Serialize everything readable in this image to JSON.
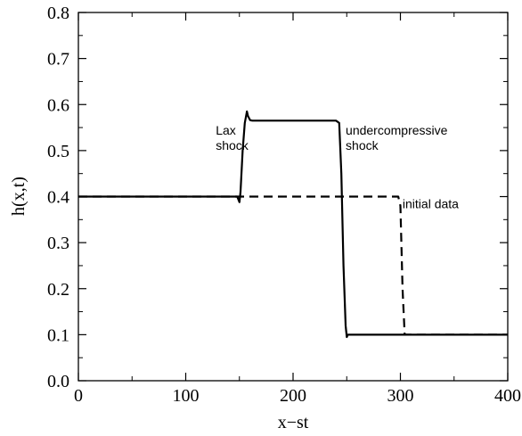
{
  "chart_data": {
    "type": "line",
    "title": "",
    "xlabel": "x−st",
    "ylabel": "h(x,t)",
    "xlim": [
      0,
      400
    ],
    "ylim": [
      0,
      0.8
    ],
    "x_ticks": [
      0,
      100,
      200,
      300,
      400
    ],
    "y_ticks": [
      0.0,
      0.1,
      0.2,
      0.3,
      0.4,
      0.5,
      0.6,
      0.7,
      0.8
    ],
    "x_tick_labels": [
      "0",
      "100",
      "200",
      "300",
      "400"
    ],
    "y_tick_labels": [
      "0.0",
      "0.1",
      "0.2",
      "0.3",
      "0.4",
      "0.5",
      "0.6",
      "0.7",
      "0.8"
    ],
    "grid": false,
    "series": [
      {
        "style": "solid",
        "color": "#000000",
        "x": [
          0,
          148,
          150,
          151,
          153,
          155,
          157,
          158,
          160,
          162,
          165,
          200,
          240,
          243,
          245,
          247,
          249,
          250,
          251,
          255,
          300,
          400
        ],
        "y": [
          0.4,
          0.4,
          0.388,
          0.41,
          0.5,
          0.56,
          0.585,
          0.575,
          0.566,
          0.565,
          0.565,
          0.565,
          0.565,
          0.56,
          0.45,
          0.25,
          0.12,
          0.095,
          0.1,
          0.1,
          0.1,
          0.1
        ]
      },
      {
        "style": "dashed",
        "color": "#000000",
        "x": [
          0,
          298,
          300,
          302,
          304,
          400
        ],
        "y": [
          0.4,
          0.4,
          0.38,
          0.2,
          0.1,
          0.1
        ]
      }
    ],
    "annotations": [
      {
        "text_lines": [
          "Lax",
          "shock"
        ],
        "x": 128,
        "y": 0.535
      },
      {
        "text_lines": [
          "undercompressive",
          "shock"
        ],
        "x": 249,
        "y": 0.535
      },
      {
        "text_lines": [
          "initial data"
        ],
        "x": 302,
        "y": 0.375
      }
    ]
  }
}
